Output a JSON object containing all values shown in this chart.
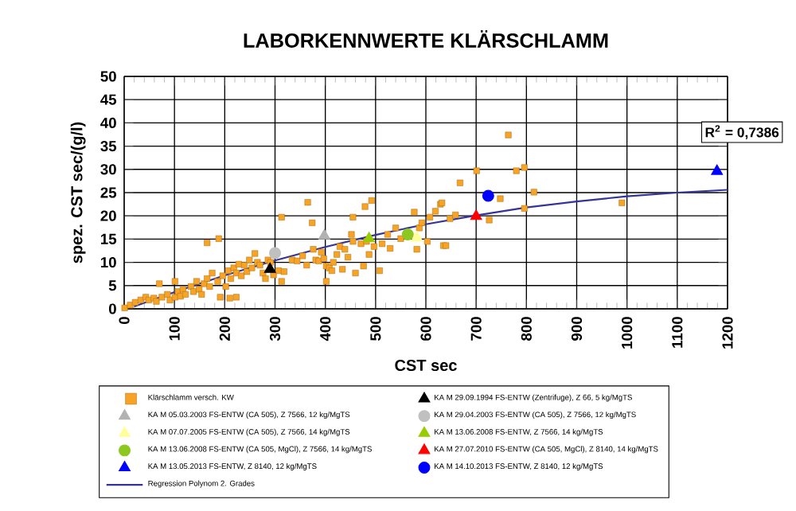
{
  "chart_data": {
    "type": "scatter",
    "title": "LABORKENNWERTE KLÄRSCHLAMM",
    "xlabel": "CST  sec",
    "ylabel": "spez. CST sec/(g/l)",
    "xlim": [
      0,
      1200
    ],
    "ylim": [
      0,
      50
    ],
    "xticks": [
      0,
      100,
      200,
      300,
      400,
      500,
      600,
      700,
      800,
      900,
      1000,
      1100,
      1200
    ],
    "yticks": [
      0,
      5,
      10,
      15,
      20,
      25,
      30,
      35,
      40,
      45,
      50
    ],
    "grid": true,
    "legend": "bottom",
    "annotations": [
      "R$^{2}$ = 0,7386"
    ],
    "series": [
      {
        "name": "Klärschlamm versch. KW",
        "color": "#f7a325",
        "marker": "square",
        "x": [
          1,
          12,
          22,
          33,
          43,
          49,
          59,
          64,
          75,
          86,
          91,
          101,
          107,
          112,
          117,
          122,
          133,
          138,
          144,
          149,
          154,
          159,
          165,
          170,
          175,
          186,
          191,
          196,
          202,
          207,
          212,
          218,
          223,
          228,
          233,
          239,
          244,
          249,
          254,
          260,
          265,
          270,
          276,
          281,
          286,
          291,
          297,
          307,
          313,
          318,
          313,
          334,
          344,
          355,
          363,
          365,
          376,
          381,
          387,
          392,
          397,
          402,
          402,
          408,
          413,
          416,
          423,
          429,
          434,
          439,
          445,
          455,
          460,
          471,
          476,
          482,
          487,
          497,
          508,
          513,
          524,
          529,
          540,
          550,
          577,
          587,
          592,
          603,
          608,
          629,
          635,
          582,
          165,
          188,
          374,
          479,
          492,
          455,
          452,
          223,
          210,
          101,
          70,
          619,
          632,
          640,
          648,
          659,
          668,
          701,
          726,
          748,
          764,
          780,
          796,
          796,
          815,
          990
        ],
        "values": [
          0.2,
          0.8,
          1.4,
          1.9,
          2.5,
          1.9,
          2.3,
          1.6,
          2.5,
          3.1,
          1.9,
          2.5,
          3.7,
          2.7,
          4.2,
          3.1,
          4.8,
          3.7,
          5.9,
          4.2,
          3.1,
          5.4,
          6.5,
          4.8,
          7.7,
          5.9,
          2.5,
          7.1,
          4.8,
          8.2,
          6.5,
          8.8,
          7.7,
          9.6,
          7.1,
          9.4,
          8.0,
          10.5,
          8.8,
          11.9,
          10.0,
          9.4,
          7.7,
          6.5,
          10.5,
          10.0,
          7.3,
          8.2,
          5.9,
          8.0,
          19.7,
          10.5,
          10.3,
          11.4,
          9.4,
          22.9,
          12.8,
          10.5,
          10.3,
          12.2,
          10.8,
          9.2,
          5.9,
          8.8,
          8.2,
          10.0,
          11.7,
          13.4,
          8.5,
          12.8,
          11.1,
          14.5,
          7.7,
          14.0,
          9.2,
          14.5,
          11.7,
          13.4,
          8.2,
          14.0,
          16.0,
          13.0,
          17.4,
          15.1,
          20.8,
          17.4,
          18.5,
          14.5,
          19.7,
          22.5,
          13.6,
          12.8,
          14.2,
          15.1,
          18.5,
          22.0,
          23.3,
          19.7,
          16.0,
          2.5,
          2.3,
          5.9,
          5.4,
          21.0,
          22.8,
          13.6,
          19.4,
          20.2,
          27.1,
          29.7,
          19.1,
          23.7,
          37.4,
          29.7,
          30.4,
          21.6,
          25.1,
          22.8
        ]
      },
      {
        "name": "KA M 29.09.1994 FS-ENTW (Zentrifuge), Z 66, 5 kg/MgTS",
        "color": "#000000",
        "marker": "triangle",
        "x": [
          290
        ],
        "values": [
          8.5
        ]
      },
      {
        "name": "KA M 05.03.2003 FS-ENTW (CA 505), Z 7566, 12 kg/MgTS",
        "color": "#b2b2b2",
        "marker": "triangle",
        "x": [
          398
        ],
        "values": [
          15.7
        ]
      },
      {
        "name": "KA M 29.04.2003 FS-ENTW (CA 505), Z 7566, 12 kg/MgTS",
        "color": "#c0c0c0",
        "marker": "circle",
        "x": [
          300
        ],
        "values": [
          12
        ]
      },
      {
        "name": "KA M 07.07.2005 FS-ENTW (CA 505), Z 7566, 14 kg/MgTS",
        "color": "#ffff99",
        "marker": "triangle",
        "x": [
          582
        ],
        "values": [
          15.3
        ]
      },
      {
        "name": "KA M 13.06.2008 FS-ENTW, Z 7566, 14 kg/MgTS",
        "color": "#99cc00",
        "marker": "triangle",
        "x": [
          487
        ],
        "values": [
          15.1
        ]
      },
      {
        "name": "KA M 13.06.2008 FS-ENTW (CA 505, MgCl), Z 7566, 14 kg/MgTS",
        "color": "#8cc820",
        "marker": "circle",
        "x": [
          564
        ],
        "values": [
          16
        ]
      },
      {
        "name": "KA M 27.07.2010 FS-ENTW (CA 505, MgCl), Z 8140, 14 kg/MgTS",
        "color": "#ff0000",
        "marker": "triangle",
        "x": [
          700
        ],
        "values": [
          19.9
        ]
      },
      {
        "name": "KA M 13.05.2013 FS-ENTW, Z 8140, 12 kg/MgTS",
        "color": "#0000ff",
        "marker": "triangle",
        "x": [
          1179
        ],
        "values": [
          29.6
        ]
      },
      {
        "name": "KA M 14.10.2013 FS-ENTW, Z 8140, 12 kg/MgTS",
        "color": "#0000ff",
        "marker": "circle",
        "x": [
          724
        ],
        "values": [
          24.3
        ]
      },
      {
        "name": "Regression Polynom 2. Grades",
        "color": "#333399",
        "type": "line",
        "marker": "none",
        "x": [
          20,
          100,
          200,
          300,
          400,
          500,
          600,
          700,
          800,
          900,
          1000,
          1100,
          1200
        ],
        "values": [
          0.5,
          3.6,
          7.2,
          10.4,
          13.3,
          15.9,
          18.2,
          20.1,
          21.8,
          23.1,
          24.2,
          25.0,
          25.6
        ]
      }
    ]
  }
}
